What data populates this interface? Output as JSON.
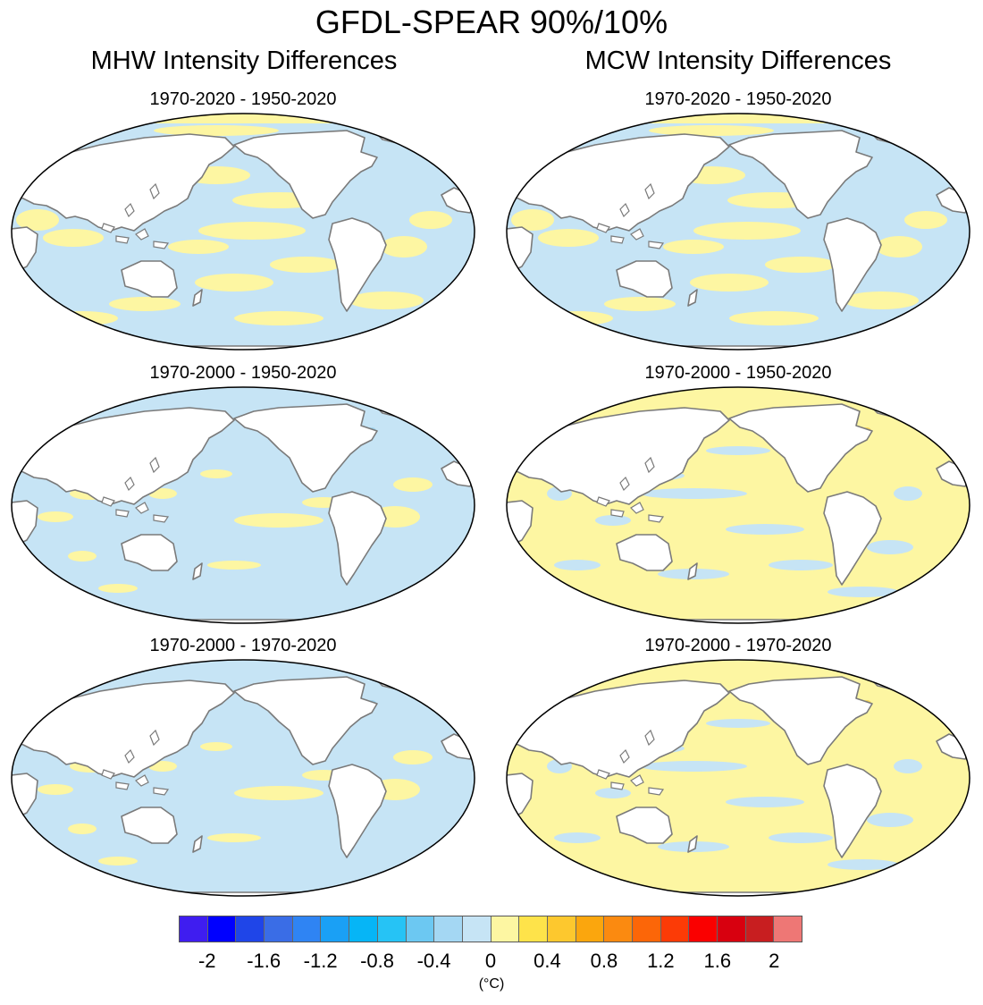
{
  "figure": {
    "title": "GFDL-SPEAR 90%/10%",
    "columns": [
      "MHW Intensity Differences",
      "MCW Intensity Differences"
    ],
    "panels": [
      {
        "title": "1970-2020 - 1950-2020",
        "column": 0,
        "row": 0,
        "dominant": "mixed"
      },
      {
        "title": "1970-2020 - 1950-2020",
        "column": 1,
        "row": 0,
        "dominant": "mixed"
      },
      {
        "title": "1970-2000 - 1950-2020",
        "column": 0,
        "row": 1,
        "dominant": "negative"
      },
      {
        "title": "1970-2000 - 1950-2020",
        "column": 1,
        "row": 1,
        "dominant": "positive"
      },
      {
        "title": "1970-2000 - 1970-2020",
        "column": 0,
        "row": 2,
        "dominant": "negative"
      },
      {
        "title": "1970-2000 - 1970-2020",
        "column": 1,
        "row": 2,
        "dominant": "positive"
      }
    ],
    "colors": {
      "ocean_negative": "#c6e4f5",
      "ocean_positive": "#fdf6a2",
      "ocean_moderate_negative": "#9fd3ee",
      "ocean_moderate_positive": "#f6d65a",
      "land": "#ffffff",
      "coast": "#7a7a7a"
    },
    "colorbar": {
      "colors": [
        "#3f1df0",
        "#0000ff",
        "#1f45e8",
        "#3a6de6",
        "#2f84f3",
        "#1aa0f5",
        "#06b5f6",
        "#26c3f5",
        "#6cc8f2",
        "#a4d7f3",
        "#c6e4f5",
        "#fdf6a2",
        "#fee34a",
        "#fdc82e",
        "#fba60d",
        "#fb8a10",
        "#fc6608",
        "#fc3b06",
        "#fa0000",
        "#d8000f",
        "#c81e20",
        "#ee7775"
      ],
      "ticks": [
        {
          "label": "-2",
          "value": -2
        },
        {
          "label": "-1.6",
          "value": -1.6
        },
        {
          "label": "-1.2",
          "value": -1.2
        },
        {
          "label": "-0.8",
          "value": -0.8
        },
        {
          "label": "-0.4",
          "value": -0.4
        },
        {
          "label": "0",
          "value": 0
        },
        {
          "label": "0.4",
          "value": 0.4
        },
        {
          "label": "0.8",
          "value": 0.8
        },
        {
          "label": "1.2",
          "value": 1.2
        },
        {
          "label": "1.6",
          "value": 1.6
        },
        {
          "label": "2",
          "value": 2
        }
      ],
      "units": "(°C)"
    }
  }
}
